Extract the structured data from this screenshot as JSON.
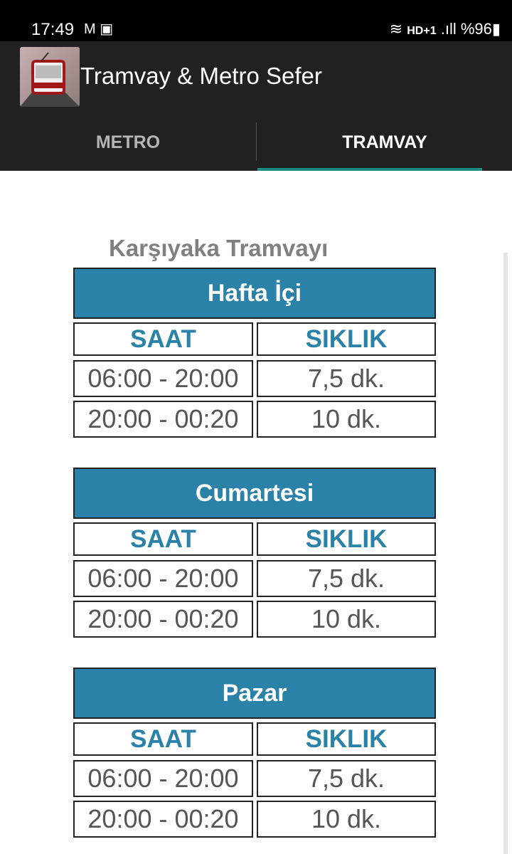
{
  "status_bar": {
    "time": "17:49",
    "left_icons": [
      "gmail-icon",
      "gallery-icon"
    ],
    "network": "HD+1",
    "battery": "%96"
  },
  "app": {
    "title": "Tramvay & Metro Sefer"
  },
  "tabs": [
    {
      "label": "METRO",
      "selected": false
    },
    {
      "label": "TRAMVAY",
      "selected": true
    }
  ],
  "colors": {
    "accent": "#2a82a8",
    "tab_indicator": "#1d8a80",
    "appbar": "#212121"
  },
  "main": {
    "heading": "Karşıyaka Tramvayı",
    "sections": [
      {
        "title": "Hafta İçi",
        "col_time": "SAAT",
        "col_freq": "SIKLIK",
        "rows": [
          {
            "time": "06:00 - 20:00",
            "freq": "7,5 dk."
          },
          {
            "time": "20:00 - 00:20",
            "freq": "10 dk."
          }
        ]
      },
      {
        "title": "Cumartesi",
        "col_time": "SAAT",
        "col_freq": "SIKLIK",
        "rows": [
          {
            "time": "06:00 - 20:00",
            "freq": "7,5 dk."
          },
          {
            "time": "20:00 - 00:20",
            "freq": "10 dk."
          }
        ]
      },
      {
        "title": "Pazar",
        "col_time": "SAAT",
        "col_freq": "SIKLIK",
        "rows": [
          {
            "time": "06:00 - 20:00",
            "freq": "7,5 dk."
          },
          {
            "time": "20:00 - 00:20",
            "freq": "10 dk."
          }
        ]
      }
    ]
  }
}
